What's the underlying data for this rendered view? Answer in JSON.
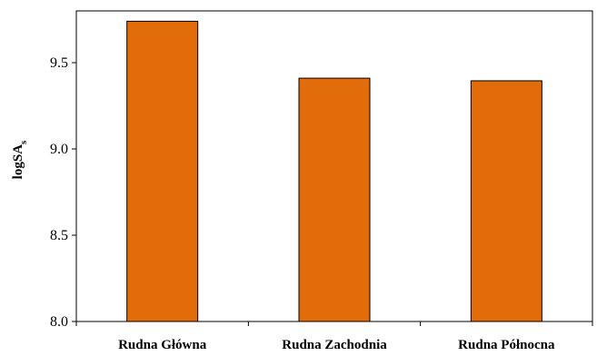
{
  "chart_data": {
    "type": "bar",
    "title": "",
    "xlabel": "",
    "ylabel": {
      "base": "logSA",
      "subscript": "s"
    },
    "categories": [
      "Rudna Główna",
      "Rudna Zachodnia",
      "Rudna Północna"
    ],
    "values": [
      9.74,
      9.41,
      9.395
    ],
    "ylim": [
      8.0,
      9.8
    ],
    "yticks": [
      8.0,
      8.5,
      9.0,
      9.5
    ],
    "ytick_labels": [
      "8.0",
      "8.5",
      "9.0",
      "9.5"
    ],
    "bar_color": "#e36c0a",
    "grid": false,
    "legend": "none"
  }
}
